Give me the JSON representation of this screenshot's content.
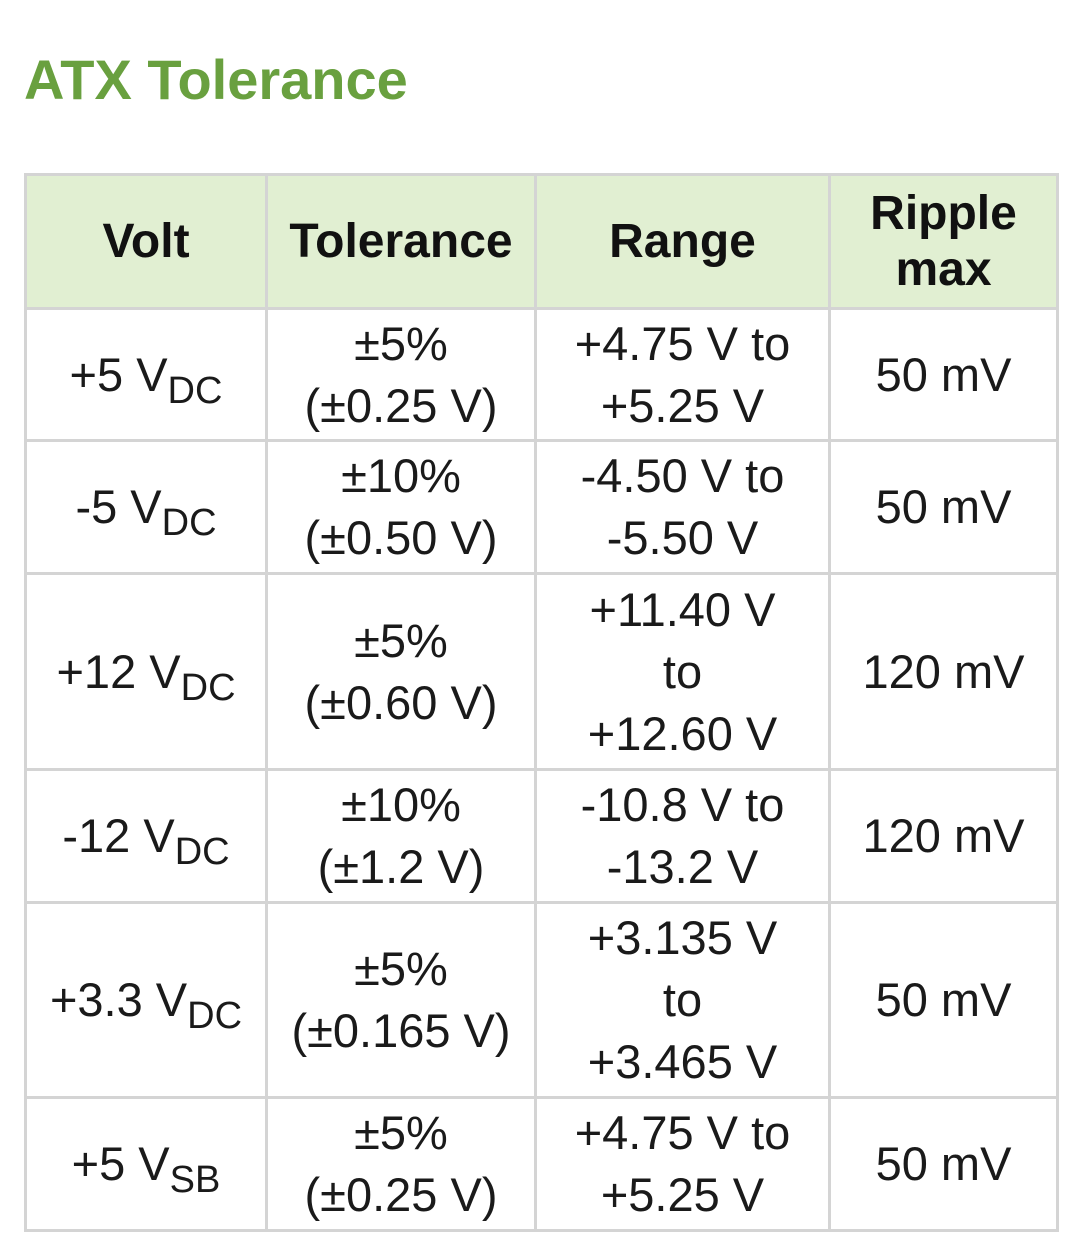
{
  "title": "ATX Tolerance",
  "table": {
    "headers": [
      "Volt",
      "Tolerance",
      "Range",
      "Ripple max"
    ],
    "rows": [
      {
        "volt_value": "+5 V",
        "volt_sub": "DC",
        "tolerance_pct": "±5%",
        "tolerance_abs": "(±0.25 V)",
        "range_line1": "+4.75 V to",
        "range_line2": "+5.25 V",
        "range_line3": "",
        "ripple": "50 mV"
      },
      {
        "volt_value": "-5 V",
        "volt_sub": "DC",
        "tolerance_pct": "±10%",
        "tolerance_abs": "(±0.50 V)",
        "range_line1": "-4.50 V to",
        "range_line2": "-5.50 V",
        "range_line3": "",
        "ripple": "50 mV"
      },
      {
        "volt_value": "+12 V",
        "volt_sub": "DC",
        "tolerance_pct": "±5%",
        "tolerance_abs": "(±0.60 V)",
        "range_line1": "+11.40 V",
        "range_line2": "to",
        "range_line3": "+12.60 V",
        "ripple": "120 mV"
      },
      {
        "volt_value": "-12 V",
        "volt_sub": "DC",
        "tolerance_pct": "±10%",
        "tolerance_abs": "(±1.2 V)",
        "range_line1": "-10.8 V to",
        "range_line2": "-13.2 V",
        "range_line3": "",
        "ripple": "120 mV"
      },
      {
        "volt_value": "+3.3 V",
        "volt_sub": "DC",
        "tolerance_pct": "±5%",
        "tolerance_abs": "(±0.165 V)",
        "range_line1": "+3.135 V",
        "range_line2": "to",
        "range_line3": "+3.465 V",
        "ripple": "50 mV"
      },
      {
        "volt_value": "+5 V",
        "volt_sub": "SB",
        "tolerance_pct": "±5%",
        "tolerance_abs": "(±0.25 V)",
        "range_line1": "+4.75 V to",
        "range_line2": "+5.25 V",
        "range_line3": "",
        "ripple": "50 mV"
      }
    ]
  },
  "colors": {
    "title": "#69a03f",
    "header_bg": "#e1efd2",
    "border": "#d4d4d4",
    "text": "#1a1a1a"
  }
}
